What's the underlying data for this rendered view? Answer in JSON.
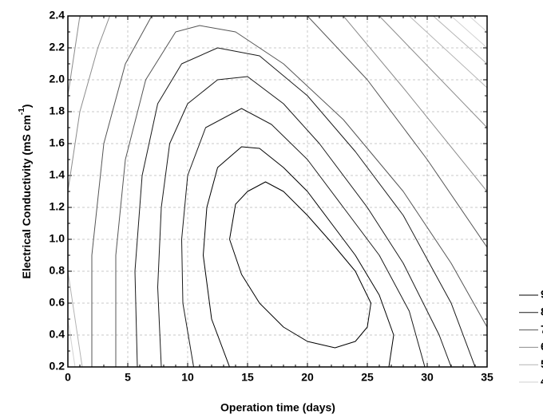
{
  "chart_data": {
    "type": "contour",
    "x_label": "Operation time (days)",
    "y_label": {
      "text": "Electrical Conductivity (mS cm",
      "sup": "-1",
      "end": ")"
    },
    "xlim": [
      0,
      35
    ],
    "xticks": [
      0,
      5,
      10,
      15,
      20,
      25,
      30,
      35
    ],
    "ylim": [
      0.2,
      2.4
    ],
    "yticks": [
      0.2,
      0.4,
      0.6,
      0.8,
      {
        "value": 1.0,
        "label": "1.0"
      },
      1.2,
      1.4,
      1.6,
      1.8,
      {
        "value": 2.0,
        "label": "2.0"
      },
      2.2,
      2.4
    ],
    "grid": true,
    "legend": "right",
    "series": [
      {
        "name": "9",
        "color": "#000000",
        "lines": [
          {
            "x": [
              13.5,
              14,
              15,
              16.5,
              18,
              20,
              22,
              24,
              25.3,
              25,
              24,
              22.3,
              20,
              18,
              16,
              14.5,
              13.5
            ],
            "y": [
              1.0,
              1.22,
              1.3,
              1.36,
              1.3,
              1.15,
              0.98,
              0.8,
              0.6,
              0.45,
              0.36,
              0.32,
              0.36,
              0.45,
              0.6,
              0.78,
              1.0
            ]
          },
          {
            "x": [
              13.5,
              12,
              11.3,
              11.6,
              12.5,
              14.5,
              16,
              18,
              20,
              22,
              24,
              26,
              27.2,
              26.8
            ],
            "y": [
              0.2,
              0.5,
              0.9,
              1.2,
              1.45,
              1.58,
              1.57,
              1.45,
              1.3,
              1.1,
              0.9,
              0.65,
              0.4,
              0.2
            ]
          }
        ]
      },
      {
        "name": "8",
        "color": "#1a1a1a",
        "lines": [
          {
            "x": [
              10.5,
              9.6,
              9.5,
              10,
              11.5,
              14.5,
              17,
              20,
              23,
              26,
              28.5,
              29.8
            ],
            "y": [
              0.2,
              0.6,
              1.0,
              1.4,
              1.7,
              1.82,
              1.72,
              1.5,
              1.2,
              0.9,
              0.55,
              0.2
            ]
          },
          {
            "x": [
              7.8,
              7.5,
              7.8,
              8.5,
              10,
              12.5,
              15,
              18,
              21,
              25,
              28,
              31,
              32
            ],
            "y": [
              0.2,
              0.7,
              1.2,
              1.6,
              1.85,
              2.0,
              2.02,
              1.85,
              1.6,
              1.2,
              0.85,
              0.4,
              0.2
            ]
          },
          {
            "x": [
              5.8,
              5.6,
              6.2,
              7.5,
              9.5,
              12.5,
              16,
              20,
              24,
              28,
              32,
              34
            ],
            "y": [
              0.2,
              0.8,
              1.4,
              1.85,
              2.1,
              2.2,
              2.15,
              1.9,
              1.55,
              1.15,
              0.6,
              0.2
            ]
          }
        ]
      },
      {
        "name": "7",
        "color": "#555555",
        "lines": [
          {
            "x": [
              4,
              4,
              4.8,
              6.5,
              9,
              11,
              14,
              18,
              23,
              28,
              32,
              35
            ],
            "y": [
              0.2,
              0.9,
              1.5,
              2.0,
              2.3,
              2.34,
              2.3,
              2.1,
              1.75,
              1.3,
              0.85,
              0.45
            ]
          },
          {
            "x": [
              2,
              2,
              3,
              4.8,
              7
            ],
            "y": [
              0.2,
              0.9,
              1.6,
              2.1,
              2.4
            ]
          },
          {
            "x": [
              20,
              25,
              30,
              35
            ],
            "y": [
              2.4,
              2.0,
              1.5,
              0.95
            ]
          }
        ]
      },
      {
        "name": "6",
        "color": "#8c8c8c",
        "lines": [
          {
            "x": [
              0,
              1,
              2.5,
              3.5
            ],
            "y": [
              1.3,
              1.8,
              2.2,
              2.4
            ]
          },
          {
            "x": [
              23,
              28,
              35
            ],
            "y": [
              2.4,
              1.95,
              1.3
            ]
          },
          {
            "x": [
              0,
              1
            ],
            "y": [
              1.9,
              2.4
            ]
          },
          {
            "x": [
              26,
              35
            ],
            "y": [
              2.4,
              1.7
            ]
          }
        ]
      },
      {
        "name": "5",
        "color": "#b4b4b4",
        "lines": [
          {
            "x": [
              0,
              1.2
            ],
            "y": [
              0.8,
              0.2
            ]
          },
          {
            "x": [
              28.5,
              35
            ],
            "y": [
              2.4,
              1.95
            ]
          },
          {
            "x": [
              30.5,
              35
            ],
            "y": [
              2.4,
              2.1
            ]
          }
        ]
      },
      {
        "name": "4",
        "color": "#d2d2d2",
        "lines": [
          {
            "x": [
              0,
              0.6
            ],
            "y": [
              0.5,
              0.2
            ]
          },
          {
            "x": [
              32,
              35
            ],
            "y": [
              2.4,
              2.2
            ]
          },
          {
            "x": [
              33.5,
              35
            ],
            "y": [
              2.4,
              2.3
            ]
          }
        ]
      }
    ]
  }
}
